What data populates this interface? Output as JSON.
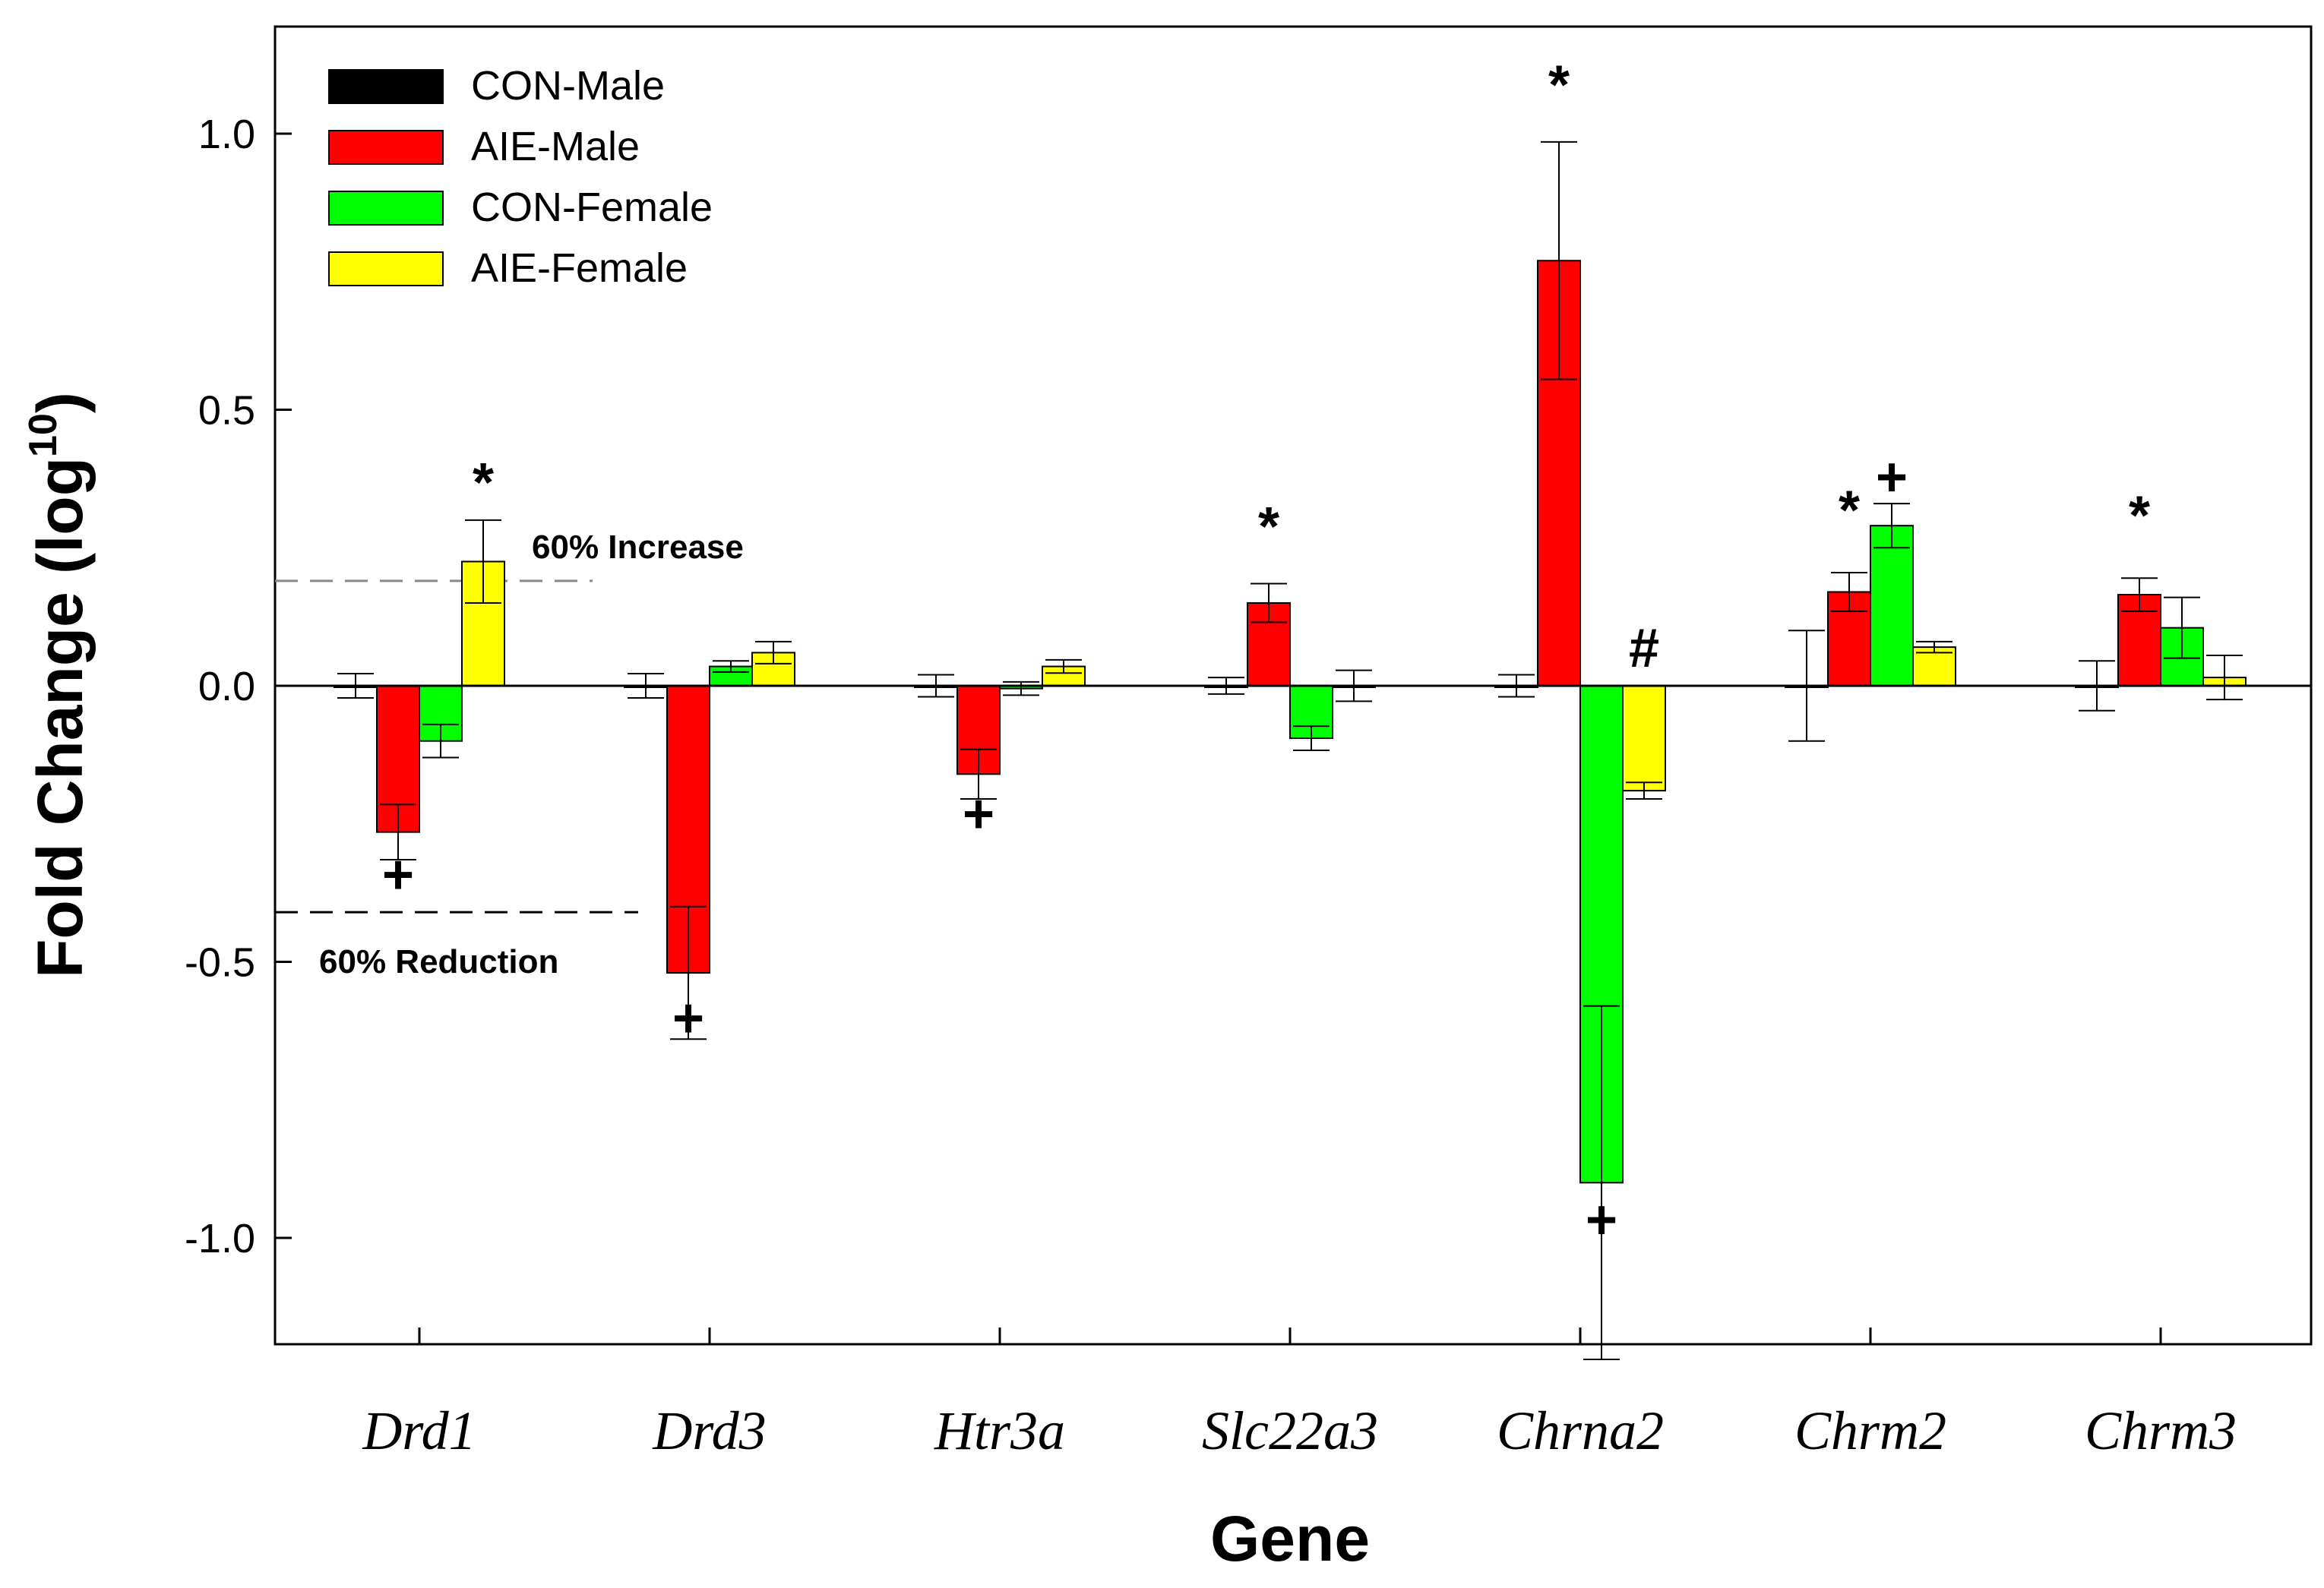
{
  "chart_data": {
    "type": "bar",
    "title": "",
    "xlabel": "Gene",
    "ylabel": "Fold Change (log",
    "ylabel_superscript": "10",
    "ylim": [
      -1.19,
      1.19
    ],
    "yticks": [
      1.0,
      0.5,
      0.0,
      -0.5,
      -1.0
    ],
    "ytick_labels": [
      "1.0",
      "0.5",
      "0.0",
      "-0.5",
      "-1.0"
    ],
    "categories": [
      "Drd1",
      "Drd3",
      "Htr3a",
      "Slc22a3",
      "Chrna2",
      "Chrm2",
      "Chrm3"
    ],
    "series": [
      {
        "name": "CON-Male",
        "color": "#000000",
        "values": [
          0,
          0,
          0,
          0,
          0,
          0,
          0
        ],
        "errors": [
          0.022,
          0.022,
          0.02,
          0.015,
          0.02,
          0.1,
          0.045
        ]
      },
      {
        "name": "AIE-Male",
        "color": "#ff0000",
        "values": [
          -0.265,
          -0.52,
          -0.16,
          0.15,
          0.77,
          0.17,
          0.165
        ],
        "errors": [
          0.05,
          0.12,
          0.045,
          0.035,
          0.215,
          0.035,
          0.03
        ]
      },
      {
        "name": "CON-Female",
        "color": "#00ff00",
        "values": [
          -0.1,
          0.035,
          -0.005,
          -0.095,
          -0.9,
          0.29,
          0.105
        ],
        "errors": [
          0.03,
          0.01,
          0.012,
          0.022,
          0.32,
          0.04,
          0.055
        ]
      },
      {
        "name": "AIE-Female",
        "color": "#ffff00",
        "values": [
          0.225,
          0.06,
          0.035,
          0.0,
          -0.19,
          0.07,
          0.015
        ],
        "errors": [
          0.075,
          0.02,
          0.012,
          0.028,
          0.015,
          0.01,
          0.04
        ]
      }
    ],
    "reference_lines": [
      {
        "label": "60% Increase",
        "value": 0.19
      },
      {
        "label": "60% Reduction",
        "value": -0.41
      }
    ],
    "annotations": [
      {
        "text": "*",
        "category": "Drd1",
        "series": "AIE-Female",
        "value": 0.37
      },
      {
        "text": "+",
        "category": "Drd1",
        "series": "AIE-Male",
        "value": -0.34
      },
      {
        "text": "+",
        "category": "Drd3",
        "series": "AIE-Male",
        "value": -0.6
      },
      {
        "text": "+",
        "category": "Htr3a",
        "series": "AIE-Male",
        "value": -0.23
      },
      {
        "text": "*",
        "category": "Slc22a3",
        "series": "AIE-Male",
        "value": 0.29
      },
      {
        "text": "*",
        "category": "Chrna2",
        "series": "AIE-Male",
        "value": 1.09
      },
      {
        "text": "+",
        "category": "Chrna2",
        "series": "CON-Female",
        "value": -0.965
      },
      {
        "text": "#",
        "category": "Chrna2",
        "series": "AIE-Female",
        "value": 0.07
      },
      {
        "text": "*",
        "category": "Chrm2",
        "series": "AIE-Male",
        "value": 0.32
      },
      {
        "text": "+",
        "category": "Chrm2",
        "series": "CON-Female",
        "value": 0.38
      },
      {
        "text": "*",
        "category": "Chrm3",
        "series": "AIE-Male",
        "value": 0.31
      }
    ],
    "legend_position": "top-left"
  }
}
